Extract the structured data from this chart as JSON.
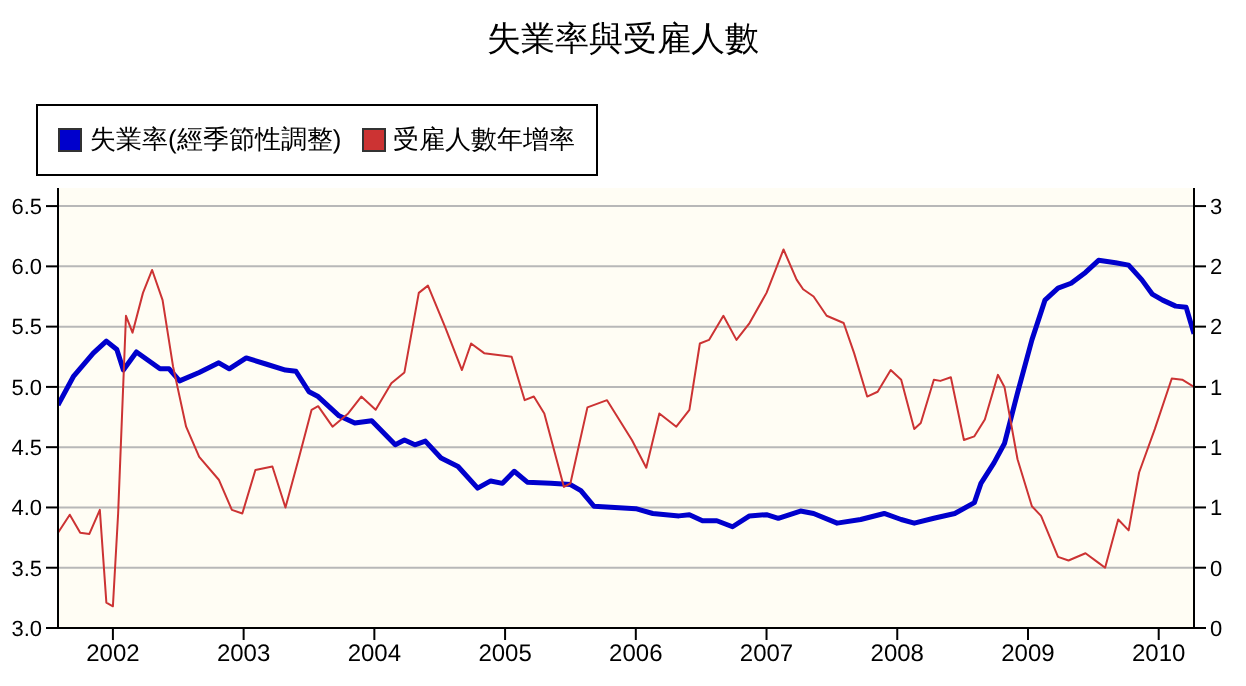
{
  "chart_data": {
    "type": "line",
    "title": "失業率與受雇人數",
    "legend": "top left",
    "grid": "y",
    "marker": "none",
    "xlim": [
      2001.58,
      2010.27
    ],
    "xticks": [
      2002,
      2003,
      2004,
      2005,
      2006,
      2007,
      2008,
      2009,
      2010
    ],
    "ylim": [
      3.0,
      6.65
    ],
    "yticks": [
      {
        "value": 3,
        "label": "3.0"
      },
      3.5,
      {
        "value": 4,
        "label": "4.0"
      },
      4.5,
      {
        "value": 5,
        "label": "5.0"
      },
      5.5,
      {
        "value": 6,
        "label": "6.0"
      },
      6.5
    ],
    "y2lim": [
      -0.5,
      3.15
    ],
    "y2ticks": [
      {
        "value": -0.5,
        "label": "0"
      },
      0,
      {
        "value": 0.5,
        "label": "1"
      },
      1,
      {
        "value": 1.5,
        "label": "1"
      },
      {
        "value": 2,
        "label": "2"
      },
      {
        "value": 2.5,
        "label": "2"
      },
      3
    ],
    "series": [
      {
        "name": "失業率(經季節性調整)",
        "color": "#0000cc",
        "x": [
          2001.58,
          2001.7,
          2001.85,
          2001.95,
          2002.03,
          2002.08,
          2002.18,
          2002.36,
          2002.43,
          2002.51,
          2002.66,
          2002.81,
          2002.89,
          2003.02,
          2003.17,
          2003.32,
          2003.4,
          2003.5,
          2003.57,
          2003.73,
          2003.85,
          2003.98,
          2004.16,
          2004.23,
          2004.31,
          2004.39,
          2004.51,
          2004.64,
          2004.79,
          2004.89,
          2004.98,
          2005.07,
          2005.17,
          2005.35,
          2005.5,
          2005.58,
          2005.68,
          2006.0,
          2006.13,
          2006.33,
          2006.41,
          2006.51,
          2006.62,
          2006.74,
          2006.87,
          2007.0,
          2007.09,
          2007.26,
          2007.36,
          2007.54,
          2007.72,
          2007.9,
          2008.03,
          2008.13,
          2008.28,
          2008.44,
          2008.59,
          2008.64,
          2008.74,
          2008.82,
          2008.92,
          2009.03,
          2009.13,
          2009.23,
          2009.33,
          2009.44,
          2009.54,
          2009.67,
          2009.77,
          2009.87,
          2009.95,
          2010.03,
          2010.13,
          2010.21,
          2010.27
        ],
        "values": [
          4.85,
          5.09,
          5.28,
          5.38,
          5.31,
          5.14,
          5.29,
          5.15,
          5.15,
          5.05,
          5.12,
          5.2,
          5.15,
          5.24,
          5.19,
          5.14,
          5.13,
          4.96,
          4.92,
          4.76,
          4.7,
          4.72,
          4.52,
          4.56,
          4.52,
          4.55,
          4.41,
          4.34,
          4.16,
          4.22,
          4.2,
          4.3,
          4.21,
          4.2,
          4.19,
          4.14,
          4.01,
          3.99,
          3.95,
          3.93,
          3.94,
          3.89,
          3.89,
          3.84,
          3.93,
          3.94,
          3.91,
          3.97,
          3.95,
          3.87,
          3.9,
          3.95,
          3.9,
          3.87,
          3.91,
          3.95,
          4.04,
          4.2,
          4.37,
          4.53,
          4.95,
          5.39,
          5.72,
          5.82,
          5.86,
          5.95,
          6.05,
          6.03,
          6.01,
          5.89,
          5.77,
          5.72,
          5.67,
          5.66,
          5.44
        ]
      },
      {
        "name": "受雇人數年增率",
        "color": "#cc3333",
        "axis": "y2",
        "x": [
          2001.58,
          2001.67,
          2001.75,
          2001.82,
          2001.9,
          2001.95,
          2002.0,
          2002.04,
          2002.1,
          2002.15,
          2002.23,
          2002.3,
          2002.38,
          2002.46,
          2002.56,
          2002.66,
          2002.81,
          2002.91,
          2002.99,
          2003.09,
          2003.22,
          2003.32,
          2003.42,
          2003.52,
          2003.57,
          2003.68,
          2003.8,
          2003.9,
          2004.01,
          2004.13,
          2004.23,
          2004.34,
          2004.41,
          2004.54,
          2004.67,
          2004.74,
          2004.84,
          2005.05,
          2005.15,
          2005.22,
          2005.3,
          2005.45,
          2005.5,
          2005.63,
          2005.78,
          2005.97,
          2006.08,
          2006.18,
          2006.31,
          2006.41,
          2006.49,
          2006.56,
          2006.67,
          2006.77,
          2006.87,
          2007.0,
          2007.13,
          2007.23,
          2007.28,
          2007.36,
          2007.46,
          2007.59,
          2007.67,
          2007.77,
          2007.85,
          2007.95,
          2008.03,
          2008.13,
          2008.18,
          2008.28,
          2008.33,
          2008.41,
          2008.51,
          2008.59,
          2008.67,
          2008.77,
          2008.82,
          2008.92,
          2009.03,
          2009.1,
          2009.23,
          2009.31,
          2009.44,
          2009.54,
          2009.59,
          2009.69,
          2009.77,
          2009.85,
          2009.97,
          2010.1,
          2010.18,
          2010.27
        ],
        "values": [
          0.29,
          0.44,
          0.29,
          0.28,
          0.48,
          -0.29,
          -0.32,
          0.45,
          2.09,
          1.95,
          2.28,
          2.47,
          2.22,
          1.67,
          1.17,
          0.92,
          0.73,
          0.48,
          0.45,
          0.81,
          0.84,
          0.5,
          0.9,
          1.31,
          1.34,
          1.17,
          1.28,
          1.42,
          1.31,
          1.53,
          1.62,
          2.28,
          2.34,
          2.0,
          1.64,
          1.86,
          1.78,
          1.75,
          1.39,
          1.42,
          1.28,
          0.67,
          0.7,
          1.33,
          1.39,
          1.06,
          0.83,
          1.28,
          1.17,
          1.31,
          1.86,
          1.89,
          2.09,
          1.89,
          2.03,
          2.28,
          2.64,
          2.39,
          2.31,
          2.25,
          2.09,
          2.03,
          1.78,
          1.42,
          1.46,
          1.64,
          1.56,
          1.15,
          1.2,
          1.56,
          1.55,
          1.58,
          1.06,
          1.09,
          1.23,
          1.6,
          1.5,
          0.9,
          0.51,
          0.43,
          0.09,
          0.06,
          0.12,
          0.04,
          0.0,
          0.4,
          0.31,
          0.79,
          1.15,
          1.57,
          1.56,
          1.5
        ]
      }
    ]
  }
}
